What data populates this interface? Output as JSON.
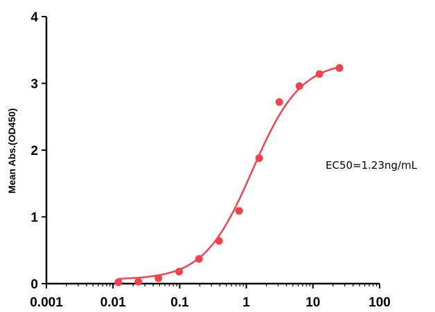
{
  "chart_data": {
    "type": "scatter",
    "title": "",
    "xlabel": "",
    "ylabel": "Mean Abs.(OD450)",
    "x_scale": "log",
    "xlim": [
      0.001,
      100
    ],
    "ylim": [
      0,
      4
    ],
    "x_tick_labels": [
      "0.001",
      "0.01",
      "0.1",
      "1",
      "10",
      "100"
    ],
    "y_tick_labels": [
      "0",
      "1",
      "2",
      "3",
      "4"
    ],
    "grid": false,
    "legend": "none",
    "series": [
      {
        "x": [
          0.012,
          0.024,
          0.048,
          0.098,
          0.195,
          0.39,
          0.78,
          1.56,
          3.125,
          6.25,
          12.5,
          25
        ],
        "y": [
          0.02,
          0.03,
          0.08,
          0.18,
          0.37,
          0.64,
          1.09,
          1.88,
          2.72,
          2.96,
          3.14,
          3.23
        ],
        "color": "#f2434d",
        "fit": {
          "model": "4PL",
          "bottom": 0.06,
          "top": 3.33,
          "ec50": 1.23,
          "hill": 1.2
        }
      }
    ],
    "annotations": [
      {
        "text": "EC50=1.23ng/mL"
      }
    ]
  }
}
